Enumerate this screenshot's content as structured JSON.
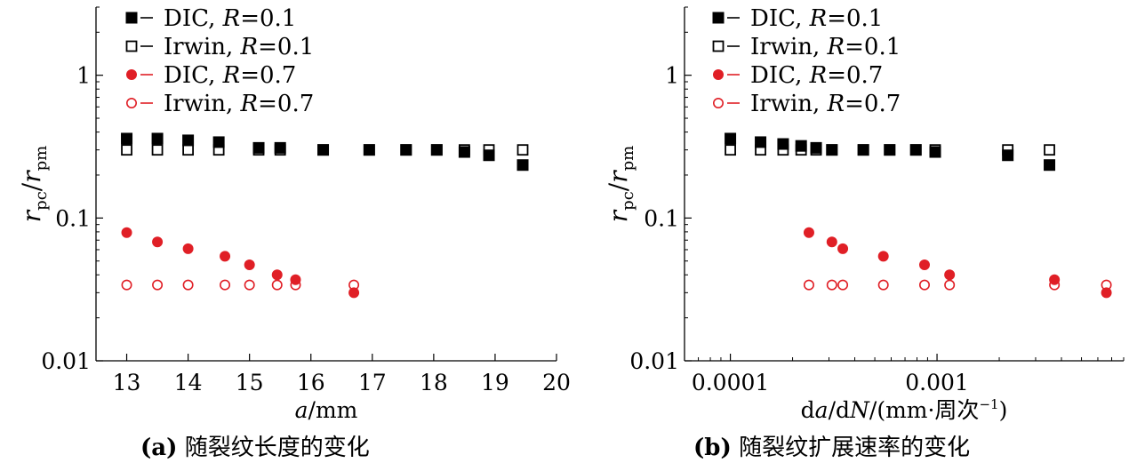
{
  "chart_data": [
    {
      "type": "scatter",
      "panel": "(a)",
      "title": "随裂纹长度的变化",
      "xlabel": "a/mm",
      "ylabel": "r_pc/r_pm",
      "x_scale": "linear",
      "y_scale": "log",
      "xlim": [
        12.5,
        20
      ],
      "ylim": [
        0.01,
        3
      ],
      "x_ticks": [
        "13",
        "14",
        "15",
        "16",
        "17",
        "18",
        "19",
        "20"
      ],
      "y_ticks": [
        "0.01",
        "0.1",
        "1"
      ],
      "legend_position": "top-left",
      "series": [
        {
          "name": "DIC, R=0.1",
          "marker": "filled-square",
          "color": "#000000",
          "x": [
            13.0,
            13.5,
            14.0,
            14.5,
            15.15,
            15.5,
            16.2,
            16.95,
            17.55,
            18.05,
            18.5,
            18.9,
            19.45
          ],
          "y": [
            0.36,
            0.36,
            0.35,
            0.34,
            0.31,
            0.31,
            0.3,
            0.3,
            0.3,
            0.3,
            0.29,
            0.275,
            0.235
          ]
        },
        {
          "name": "Irwin, R=0.1",
          "marker": "open-square",
          "color": "#000000",
          "x": [
            13.0,
            13.5,
            14.0,
            14.5,
            15.15,
            15.5,
            16.2,
            16.95,
            17.55,
            18.05,
            18.5,
            18.9,
            19.45
          ],
          "y": [
            0.3,
            0.3,
            0.3,
            0.3,
            0.3,
            0.3,
            0.3,
            0.3,
            0.3,
            0.3,
            0.3,
            0.3,
            0.3
          ]
        },
        {
          "name": "DIC, R=0.7",
          "marker": "filled-circle",
          "color": "#e01f26",
          "x": [
            13.0,
            13.5,
            14.0,
            14.6,
            15.0,
            15.45,
            15.75,
            16.7
          ],
          "y": [
            0.079,
            0.068,
            0.061,
            0.054,
            0.047,
            0.04,
            0.037,
            0.03
          ]
        },
        {
          "name": "Irwin, R=0.7",
          "marker": "open-circle",
          "color": "#e01f26",
          "x": [
            13.0,
            13.5,
            14.0,
            14.6,
            15.0,
            15.45,
            15.75,
            16.7
          ],
          "y": [
            0.034,
            0.034,
            0.034,
            0.034,
            0.034,
            0.034,
            0.034,
            0.034
          ]
        }
      ]
    },
    {
      "type": "scatter",
      "panel": "(b)",
      "title": "随裂纹扩展速率的变化",
      "xlabel": "da/dN/(mm·周次⁻¹)",
      "ylabel": "r_pc/r_pm",
      "x_scale": "log",
      "y_scale": "log",
      "xlim": [
        6e-05,
        0.008
      ],
      "ylim": [
        0.01,
        3
      ],
      "x_ticks": [
        "0.0001",
        "0.001"
      ],
      "y_ticks": [
        "0.01",
        "0.1",
        "1"
      ],
      "legend_position": "top-left",
      "series": [
        {
          "name": "DIC, R=0.1",
          "marker": "filled-square",
          "color": "#000000",
          "x": [
            0.0001,
            0.00014,
            0.00018,
            0.00022,
            0.00026,
            0.00031,
            0.00044,
            0.00059,
            0.00079,
            0.00098,
            0.0022,
            0.0035
          ],
          "y": [
            0.36,
            0.34,
            0.33,
            0.32,
            0.31,
            0.3,
            0.3,
            0.3,
            0.3,
            0.29,
            0.275,
            0.235
          ]
        },
        {
          "name": "Irwin, R=0.1",
          "marker": "open-square",
          "color": "#000000",
          "x": [
            0.0001,
            0.00014,
            0.00018,
            0.00022,
            0.00026,
            0.00031,
            0.00044,
            0.00059,
            0.00079,
            0.00098,
            0.0022,
            0.0035
          ],
          "y": [
            0.3,
            0.3,
            0.3,
            0.3,
            0.3,
            0.3,
            0.3,
            0.3,
            0.3,
            0.3,
            0.3,
            0.3
          ]
        },
        {
          "name": "DIC, R=0.7",
          "marker": "filled-circle",
          "color": "#e01f26",
          "x": [
            0.00024,
            0.00031,
            0.00035,
            0.00055,
            0.00087,
            0.00115,
            0.0037,
            0.0066
          ],
          "y": [
            0.079,
            0.068,
            0.061,
            0.054,
            0.047,
            0.04,
            0.037,
            0.03
          ]
        },
        {
          "name": "Irwin, R=0.7",
          "marker": "open-circle",
          "color": "#e01f26",
          "x": [
            0.00024,
            0.00031,
            0.00035,
            0.00055,
            0.00087,
            0.00115,
            0.0037,
            0.0066
          ],
          "y": [
            0.034,
            0.034,
            0.034,
            0.034,
            0.034,
            0.034,
            0.034,
            0.034
          ]
        }
      ]
    }
  ],
  "captions": {
    "a_label": "(a)",
    "a_text": "随裂纹长度的变化",
    "b_label": "(b)",
    "b_text": "随裂纹扩展速率的变化"
  },
  "legend": {
    "dic_r01": {
      "name": "DIC",
      "r": "0.1"
    },
    "irwin_r01": {
      "name": "Irwin",
      "r": "0.1"
    },
    "dic_r07": {
      "name": "DIC",
      "r": "0.7"
    },
    "irwin_r07": {
      "name": "Irwin",
      "r": "0.7"
    }
  }
}
